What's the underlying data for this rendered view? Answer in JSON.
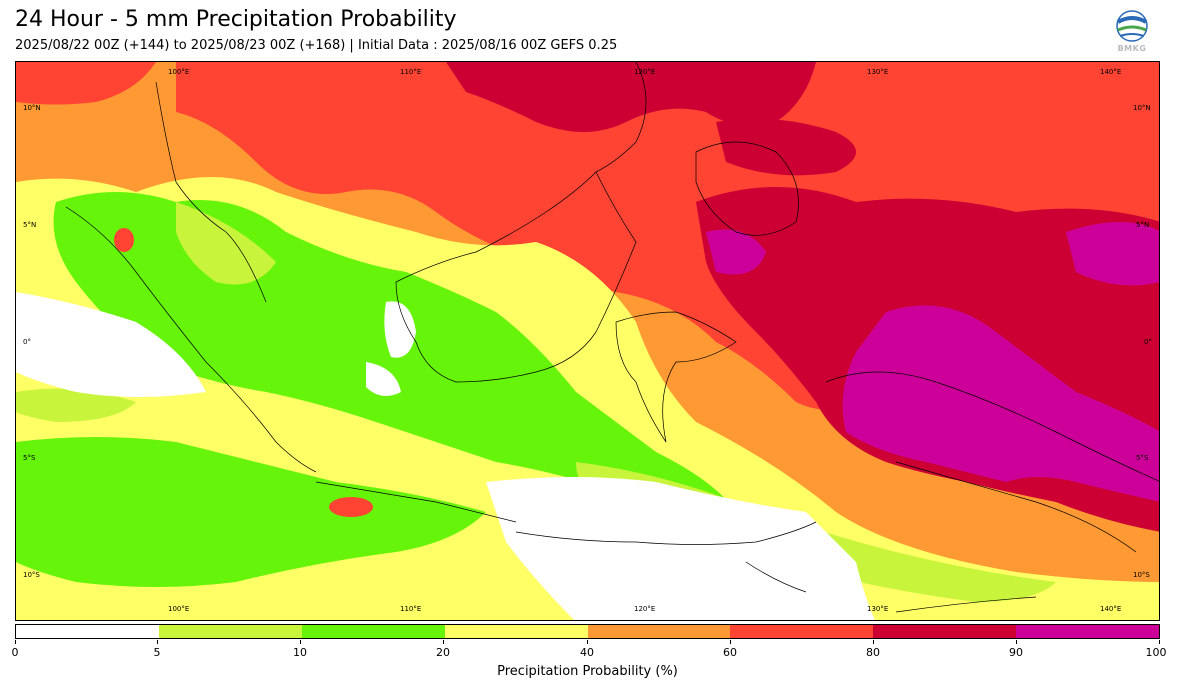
{
  "header": {
    "title": "24 Hour - 5 mm Precipitation Probability",
    "subtitle": "2025/08/22 00Z (+144) to 2025/08/23 00Z (+168) | Initial Data : 2025/08/16 00Z GEFS 0.25"
  },
  "logo": {
    "icon": "bmkg-logo",
    "text": "BMKG"
  },
  "map": {
    "lon_labels": [
      "100°E",
      "110°E",
      "120°E",
      "130°E",
      "140°E"
    ],
    "lat_labels": [
      "10°N",
      "5°N",
      "0°",
      "5°S",
      "10°S"
    ],
    "colors": {
      "c0_5": "#ffffff",
      "c5_10": "#c8f53c",
      "c10_20": "#66f40a",
      "c20_40": "#ffff66",
      "c40_60": "#ff9933",
      "c60_80": "#ff4433",
      "c80_90": "#cc0033",
      "c90_100": "#cc0099"
    }
  },
  "colorbar": {
    "label": "Precipitation Probability (%)",
    "ticks": [
      "0",
      "5",
      "10",
      "20",
      "40",
      "60",
      "80",
      "90",
      "100"
    ],
    "colors": [
      "#ffffff",
      "#c8f53c",
      "#66f40a",
      "#ffff66",
      "#ff9933",
      "#ff4433",
      "#cc0033",
      "#cc0099"
    ]
  }
}
